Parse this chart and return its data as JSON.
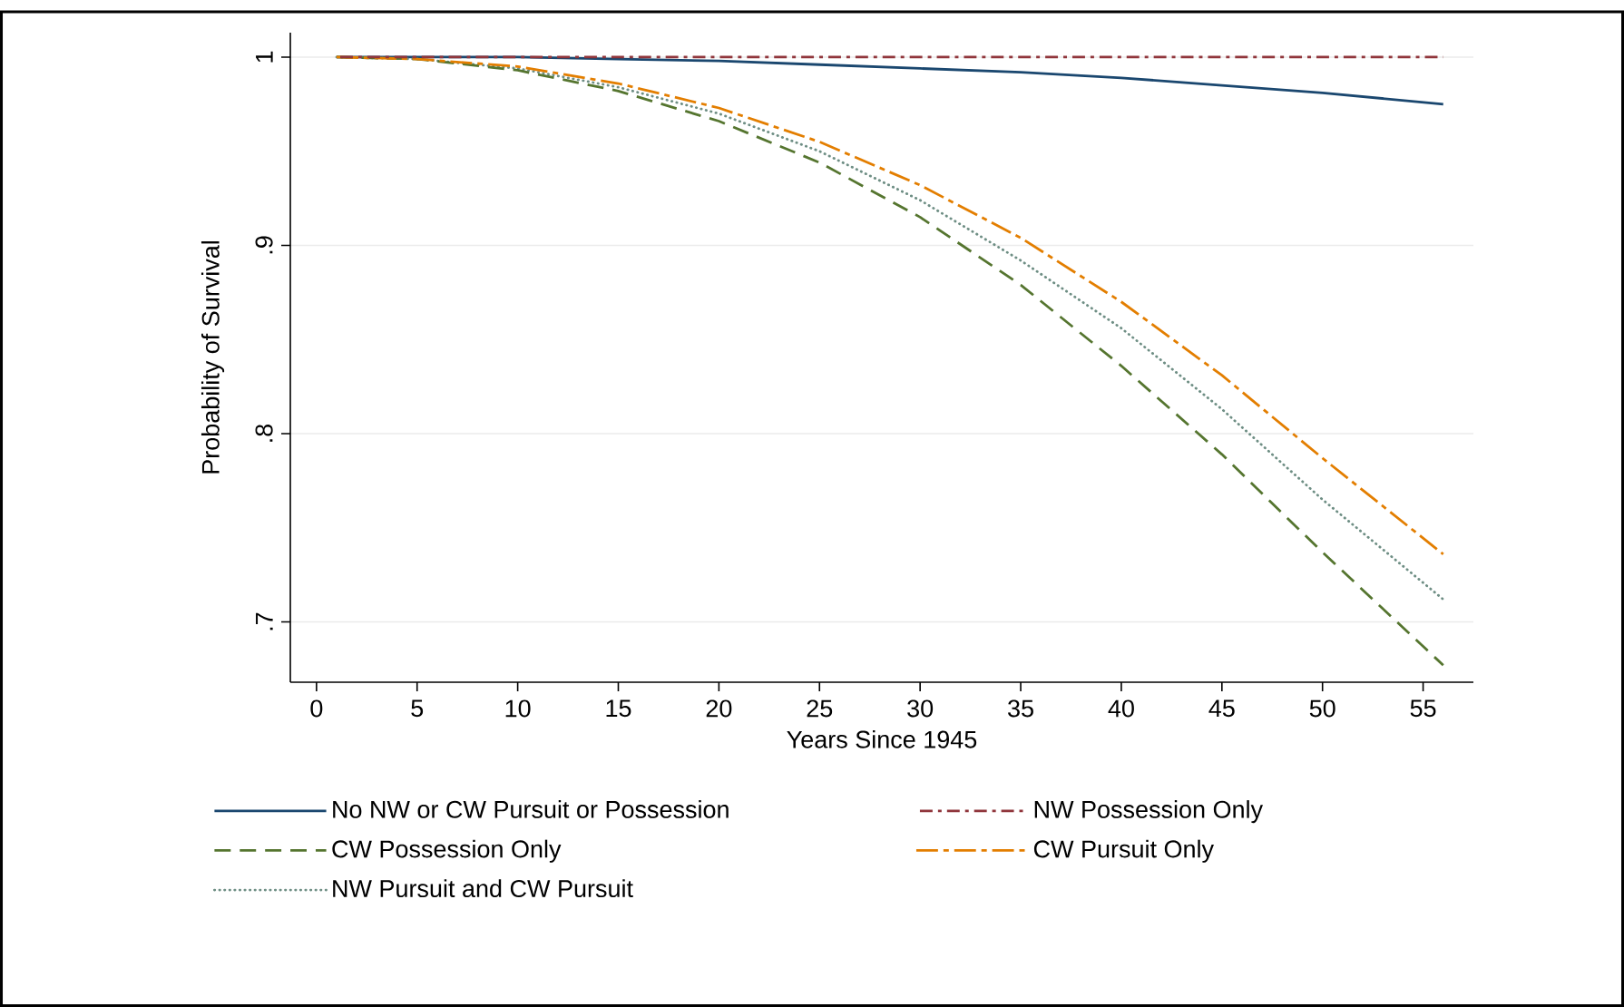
{
  "chart_data": {
    "type": "line",
    "xlabel": "Years Since 1945",
    "ylabel": "Probability of Survival",
    "x": [
      1,
      5,
      10,
      15,
      20,
      25,
      30,
      35,
      40,
      45,
      50,
      56
    ],
    "xlim": [
      -1.3,
      57.5
    ],
    "xticks": [
      0,
      5,
      10,
      15,
      20,
      25,
      30,
      35,
      40,
      45,
      50,
      55
    ],
    "ylim": [
      0.668,
      1.013
    ],
    "yticks": [
      {
        "value": 0.7,
        "label": ".7"
      },
      {
        "value": 0.8,
        "label": ".8"
      },
      {
        "value": 0.9,
        "label": ".9"
      },
      1
    ],
    "grid": "y",
    "legend": "bottom",
    "series": [
      {
        "name": "No NW or CW Pursuit or Possession",
        "color": "#1a476f",
        "line_style": "solid",
        "values": [
          1,
          1,
          1,
          0.999,
          0.998,
          0.996,
          0.994,
          0.992,
          0.989,
          0.985,
          0.981,
          0.975
        ]
      },
      {
        "name": "NW Possession Only",
        "color": "#90353b",
        "line_style": "dashdot",
        "values": [
          1,
          1,
          1,
          1,
          1,
          1,
          1,
          1,
          1,
          1,
          1,
          1
        ]
      },
      {
        "name": "CW Possession Only",
        "color": "#55752f",
        "line_style": "dashed",
        "values": [
          1,
          0.999,
          0.993,
          0.982,
          0.966,
          0.944,
          0.915,
          0.879,
          0.836,
          0.789,
          0.737,
          0.677
        ]
      },
      {
        "name": "CW Pursuit Only",
        "color": "#e37e00",
        "line_style": "longdashdot",
        "values": [
          1,
          0.999,
          0.995,
          0.986,
          0.973,
          0.955,
          0.932,
          0.904,
          0.87,
          0.831,
          0.787,
          0.736
        ]
      },
      {
        "name": "NW Pursuit and CW Pursuit",
        "color": "#6e8e84",
        "line_style": "dotted",
        "values": [
          1,
          0.999,
          0.994,
          0.984,
          0.97,
          0.95,
          0.924,
          0.892,
          0.856,
          0.813,
          0.765,
          0.712
        ]
      }
    ]
  }
}
